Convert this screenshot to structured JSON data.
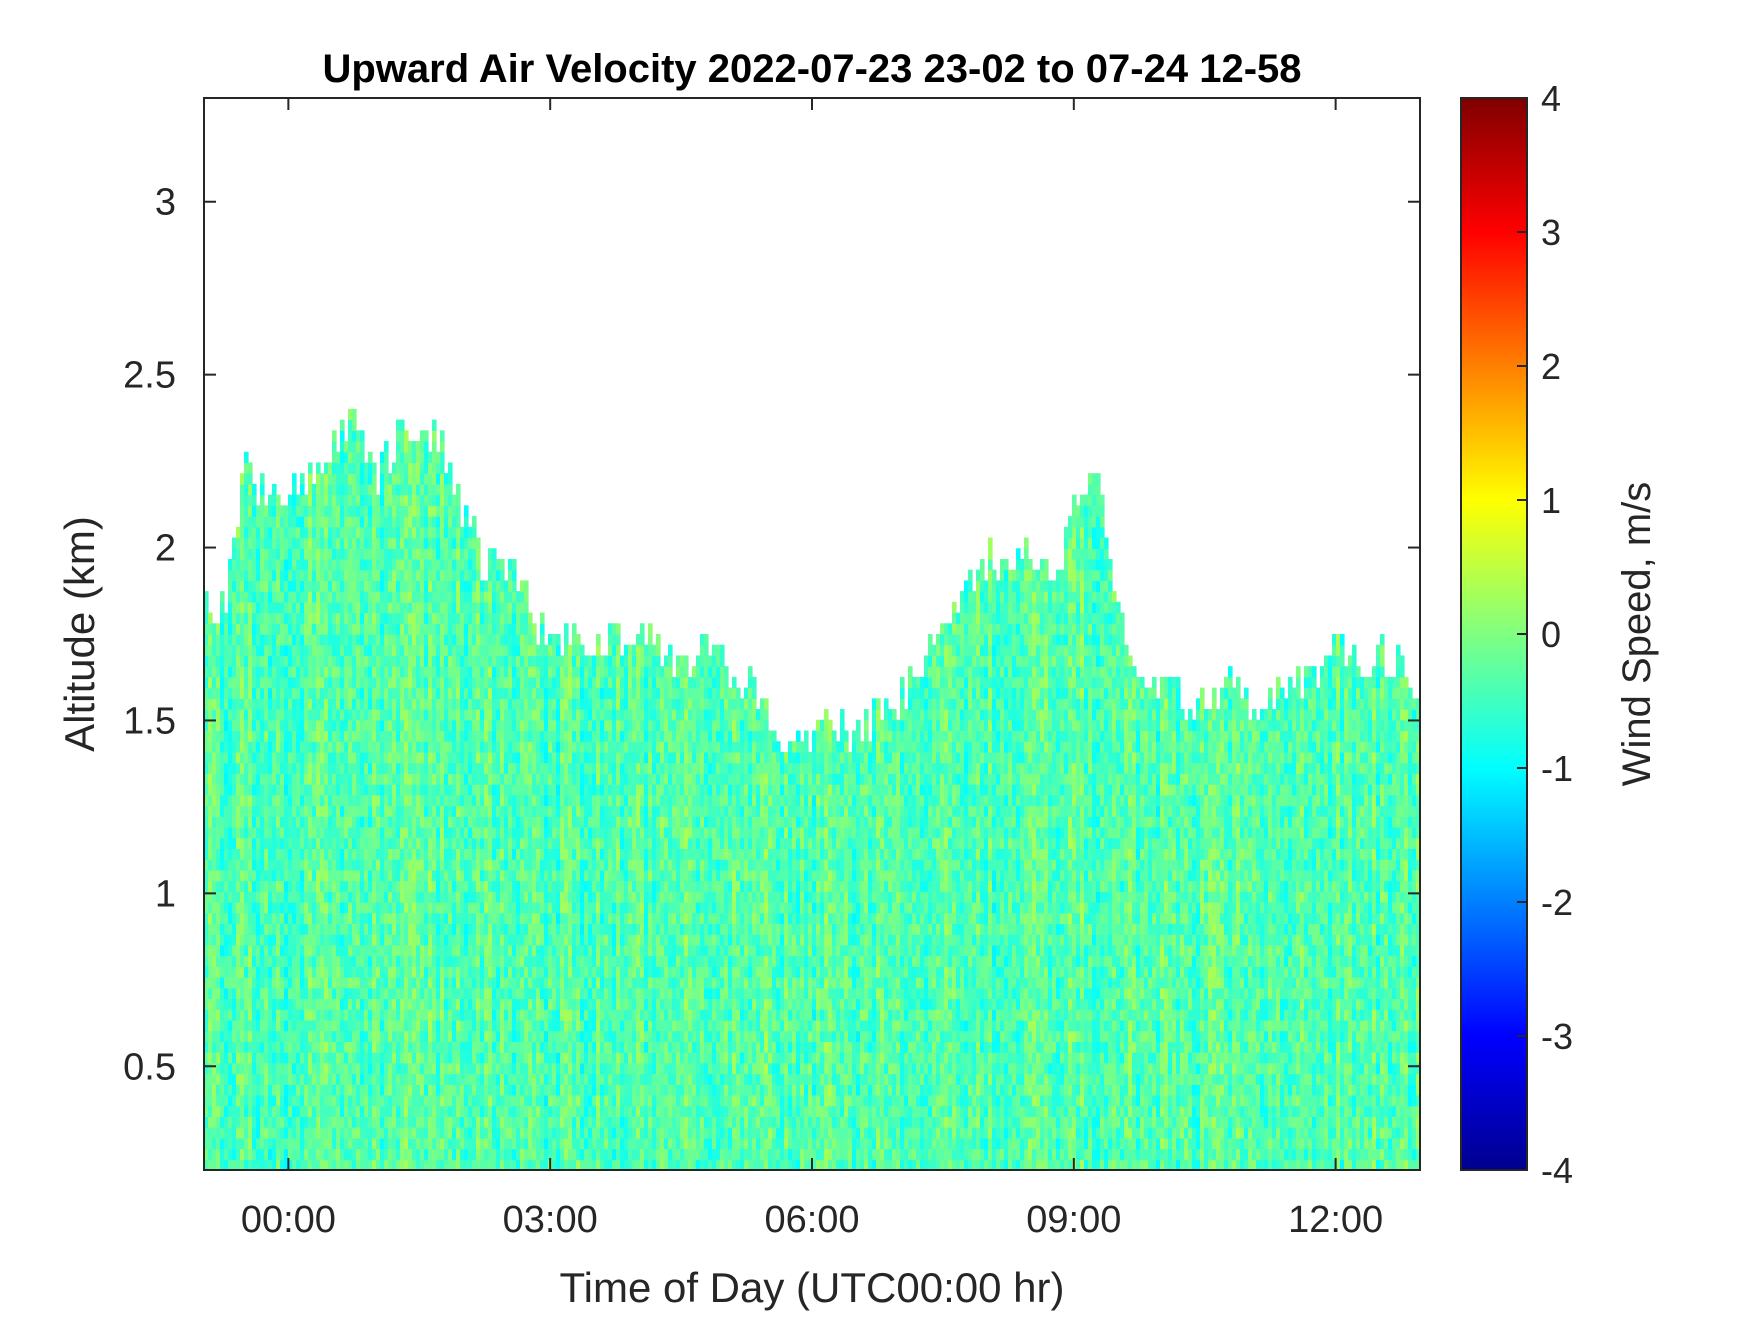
{
  "chart_data": {
    "type": "heatmap",
    "title": "Upward Air Velocity 2022-07-23 23-02 to 07-24 12-58",
    "xlabel": "Time of Day (UTC00:00 hr)",
    "ylabel": "Altitude (km)",
    "xlim": [
      "2022-07-23 23:02",
      "2022-07-24 12:58"
    ],
    "ylim": [
      0.2,
      3.3
    ],
    "x_ticks": [
      {
        "time": "2022-07-24 00:00",
        "label": "00:00"
      },
      {
        "time": "2022-07-24 03:00",
        "label": "03:00"
      },
      {
        "time": "2022-07-24 06:00",
        "label": "06:00"
      },
      {
        "time": "2022-07-24 09:00",
        "label": "09:00"
      },
      {
        "time": "2022-07-24 12:00",
        "label": "12:00"
      }
    ],
    "y_ticks": [
      {
        "value": 0.5,
        "label": "0.5"
      },
      {
        "value": 1,
        "label": "1"
      },
      {
        "value": 1.5,
        "label": "1.5"
      },
      {
        "value": 2,
        "label": "2"
      },
      {
        "value": 2.5,
        "label": "2.5"
      },
      {
        "value": 3,
        "label": "3"
      }
    ],
    "colorbar": {
      "label": "Wind Speed, m/s",
      "colormap": "jet",
      "range": [
        -4,
        4
      ],
      "ticks": [
        {
          "value": 4,
          "label": "4"
        },
        {
          "value": 3,
          "label": "3"
        },
        {
          "value": 2,
          "label": "2"
        },
        {
          "value": 1,
          "label": "1"
        },
        {
          "value": 0,
          "label": "0"
        },
        {
          "value": -1,
          "label": "-1"
        },
        {
          "value": -2,
          "label": "-2"
        },
        {
          "value": -3,
          "label": "-3"
        },
        {
          "value": -4,
          "label": "-4"
        }
      ]
    },
    "data_top_altitude_km": {
      "times": [
        "23:02",
        "23:15",
        "23:30",
        "23:45",
        "00:00",
        "00:15",
        "00:30",
        "00:45",
        "01:00",
        "01:15",
        "01:30",
        "01:45",
        "02:00",
        "02:15",
        "02:30",
        "02:45",
        "03:00",
        "03:15",
        "03:30",
        "03:45",
        "04:00",
        "04:15",
        "04:30",
        "04:45",
        "05:00",
        "05:15",
        "05:30",
        "05:45",
        "06:00",
        "06:15",
        "06:30",
        "06:45",
        "07:00",
        "07:15",
        "07:30",
        "07:45",
        "08:00",
        "08:15",
        "08:30",
        "08:45",
        "09:00",
        "09:15",
        "09:30",
        "09:45",
        "10:00",
        "10:15",
        "10:30",
        "10:45",
        "11:00",
        "11:15",
        "11:30",
        "11:45",
        "12:00",
        "12:15",
        "12:30",
        "12:45",
        "12:58"
      ],
      "altitude_km": [
        1.85,
        1.8,
        2.25,
        2.15,
        2.15,
        2.2,
        2.3,
        2.4,
        2.2,
        2.3,
        2.35,
        2.3,
        2.1,
        1.95,
        1.95,
        1.85,
        1.7,
        1.75,
        1.7,
        1.75,
        1.75,
        1.7,
        1.65,
        1.7,
        1.65,
        1.6,
        1.5,
        1.45,
        1.45,
        1.5,
        1.45,
        1.5,
        1.55,
        1.65,
        1.75,
        1.85,
        1.95,
        2.0,
        2.0,
        1.9,
        2.1,
        2.25,
        1.8,
        1.65,
        1.6,
        1.55,
        1.55,
        1.6,
        1.55,
        1.55,
        1.6,
        1.6,
        1.8,
        1.65,
        1.7,
        1.65,
        1.6
      ]
    },
    "dominant_value_range_m_s": [
      -1.2,
      0.5
    ],
    "missing_data_color": "#ffffff"
  }
}
